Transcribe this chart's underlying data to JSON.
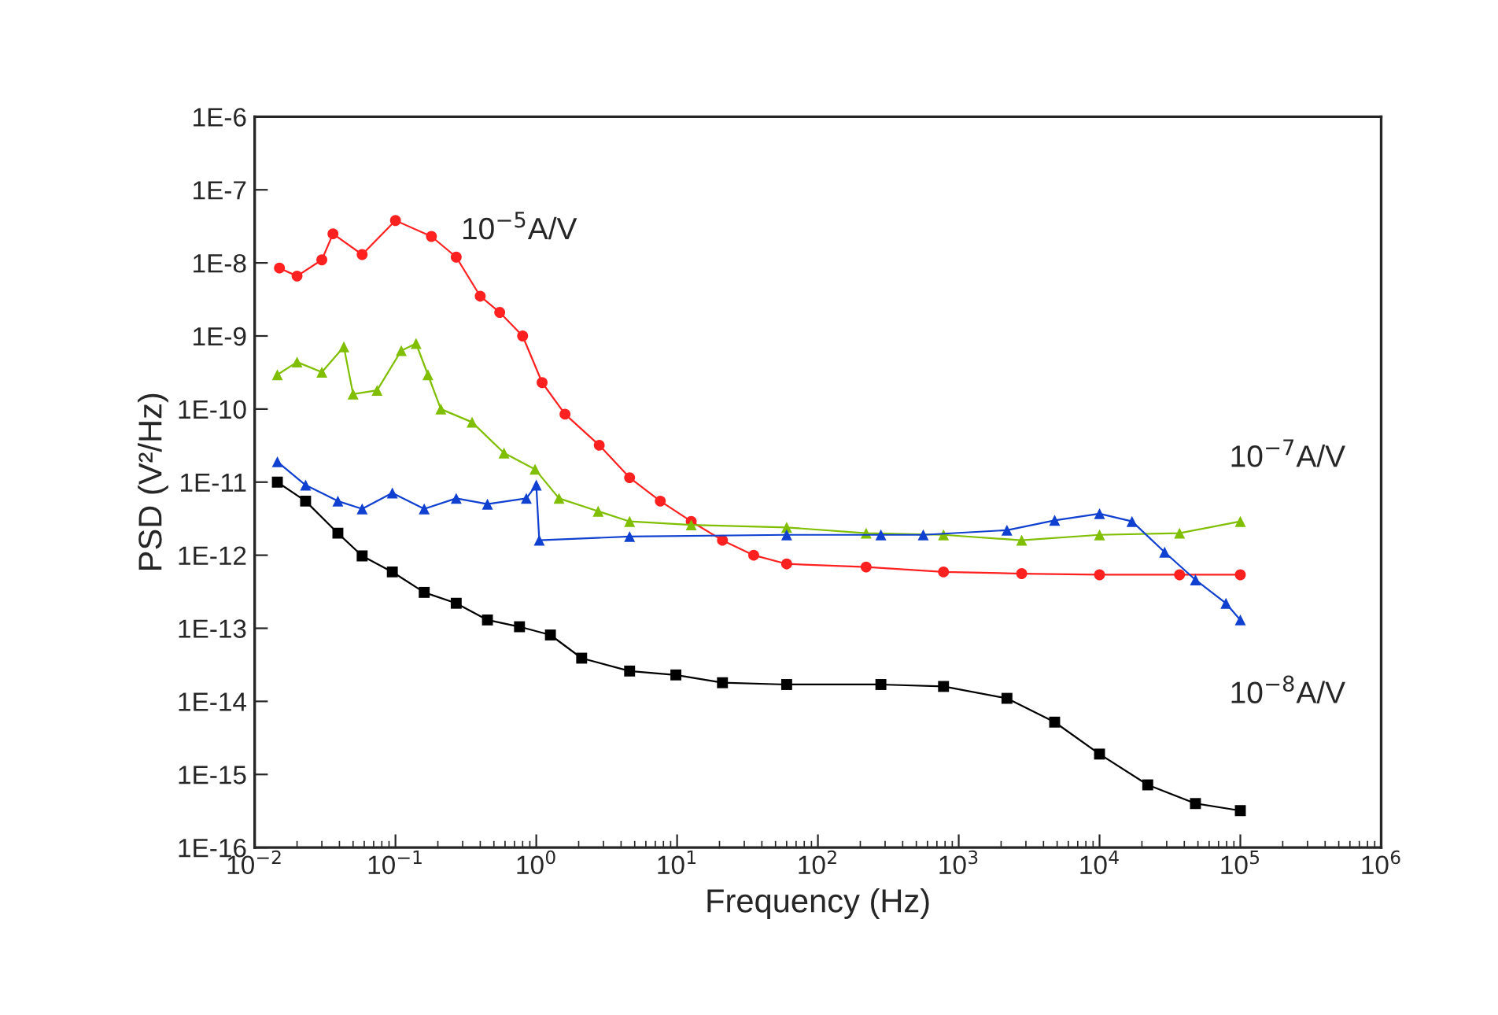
{
  "chart_data": {
    "type": "line",
    "xlabel": "Frequency (Hz)",
    "ylabel": "PSD (V²/Hz)",
    "log": "xy",
    "grid": false,
    "line_style": "solid",
    "xlim": [
      0.01,
      1000000
    ],
    "ylim": [
      1e-16,
      1e-06
    ],
    "xticks": [
      {
        "value": 0.01,
        "label": "10$^{−2}$"
      },
      {
        "value": 0.1,
        "label": "10$^{−1}$"
      },
      {
        "value": 1,
        "label": "10$^{0}$"
      },
      {
        "value": 10,
        "label": "10$^{1}$"
      },
      {
        "value": 100,
        "label": "10$^{2}$"
      },
      {
        "value": 1000,
        "label": "10$^{3}$"
      },
      {
        "value": 10000,
        "label": "10$^{4}$"
      },
      {
        "value": 100000,
        "label": "10$^{5}$"
      },
      {
        "value": 1000000,
        "label": "10$^{6}$"
      }
    ],
    "yticks": [
      {
        "value": 1e-16,
        "label": "1E-16"
      },
      {
        "value": 1e-15,
        "label": "1E-15"
      },
      {
        "value": 1e-14,
        "label": "1E-14"
      },
      {
        "value": 1e-13,
        "label": "1E-13"
      },
      {
        "value": 1e-12,
        "label": "1E-12"
      },
      {
        "value": 1e-11,
        "label": "1E-11"
      },
      {
        "value": 1e-10,
        "label": "1E-10"
      },
      {
        "value": 1e-09,
        "label": "1E-9"
      },
      {
        "value": 1e-08,
        "label": "1E-8"
      },
      {
        "value": 1e-07,
        "label": "1E-7"
      },
      {
        "value": 1e-06,
        "label": "1E-6"
      }
    ],
    "series": [
      {
        "name": "10$^{−5}$A/V",
        "color": "#ff2020",
        "marker": "circle",
        "x": [
          0.015,
          0.02,
          0.03,
          0.036,
          0.058,
          0.1,
          0.18,
          0.27,
          0.4,
          0.55,
          0.8,
          1.1,
          1.6,
          2.8,
          4.6,
          7.6,
          12.6,
          21,
          35,
          60,
          220,
          780,
          2800,
          10000,
          37000,
          100000
        ],
        "values": [
          8.5e-09,
          6.6e-09,
          1.1e-08,
          2.5e-08,
          1.3e-08,
          3.8e-08,
          2.3e-08,
          1.2e-08,
          3.5e-09,
          2.1e-09,
          1e-09,
          2.3e-10,
          8.5e-11,
          3.2e-11,
          1.15e-11,
          5.5e-12,
          2.9e-12,
          1.6e-12,
          1e-12,
          7.6e-13,
          6.9e-13,
          5.9e-13,
          5.6e-13,
          5.4e-13,
          5.4e-13,
          5.4e-13
        ]
      },
      {
        "name": "10$^{−7}$A/V",
        "color": "#7fbf00",
        "marker": "triangle",
        "x": [
          0.0145,
          0.02,
          0.03,
          0.043,
          0.05,
          0.074,
          0.11,
          0.14,
          0.17,
          0.21,
          0.35,
          0.59,
          0.98,
          1.45,
          2.75,
          4.6,
          12.6,
          60,
          220,
          780,
          2800,
          10000,
          37000,
          100000
        ],
        "values": [
          2.95e-10,
          4.4e-10,
          3.2e-10,
          7.1e-10,
          1.6e-10,
          1.8e-10,
          6.3e-10,
          7.9e-10,
          2.95e-10,
          1e-10,
          6.6e-11,
          2.5e-11,
          1.5e-11,
          6e-12,
          4e-12,
          2.9e-12,
          2.6e-12,
          2.4e-12,
          2e-12,
          1.9e-12,
          1.6e-12,
          1.9e-12,
          2e-12,
          2.9e-12
        ]
      },
      {
        "name": "10$^{−8}$A/V",
        "color": "#1040d0",
        "marker": "triangle",
        "x": [
          0.0145,
          0.023,
          0.039,
          0.058,
          0.095,
          0.16,
          0.27,
          0.45,
          0.85,
          1.0,
          1.05,
          4.6,
          60,
          280,
          560,
          2200,
          4800,
          10000,
          17000,
          29000,
          48000,
          79000,
          100000
        ],
        "values": [
          1.9e-11,
          9.1e-12,
          5.5e-12,
          4.3e-12,
          7.1e-12,
          4.3e-12,
          6e-12,
          5e-12,
          6e-12,
          9.1e-12,
          1.6e-12,
          1.8e-12,
          1.9e-12,
          1.9e-12,
          1.9e-12,
          2.2e-12,
          3e-12,
          3.7e-12,
          2.9e-12,
          1.1e-12,
          4.6e-13,
          2.2e-13,
          1.3e-13
        ]
      },
      {
        "color": "#000000",
        "marker": "square",
        "x": [
          0.0145,
          0.023,
          0.039,
          0.058,
          0.095,
          0.16,
          0.27,
          0.45,
          0.76,
          1.26,
          2.1,
          4.6,
          9.8,
          21,
          60,
          280,
          780,
          2200,
          4800,
          10000,
          22000,
          48000,
          100000
        ],
        "values": [
          1e-11,
          5.5e-12,
          2e-12,
          9.8e-13,
          5.9e-13,
          3.1e-13,
          2.2e-13,
          1.3e-13,
          1.05e-13,
          8.1e-14,
          3.9e-14,
          2.6e-14,
          2.3e-14,
          1.8e-14,
          1.7e-14,
          1.7e-14,
          1.6e-14,
          1.1e-14,
          5.2e-15,
          1.9e-15,
          7.2e-16,
          4e-16,
          3.2e-16
        ]
      }
    ]
  }
}
